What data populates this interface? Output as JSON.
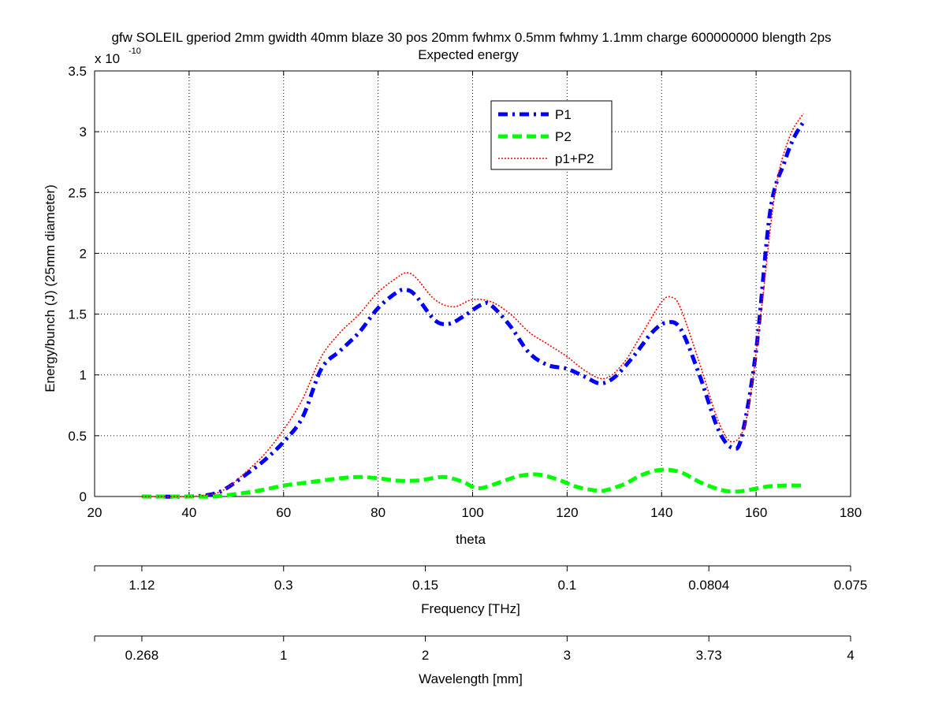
{
  "figure": {
    "title_line1": "gfw SOLEIL gperiod 2mm gwidth 40mm blaze 30 pos 20mm fwhmx 0.5mm fwhmy 1.1mm charge 600000000 blength 2ps",
    "title_line2": "Expected energy",
    "exponent_base": "x 10",
    "exponent_power": "-10"
  },
  "chart_data": {
    "type": "line",
    "title": "gfw SOLEIL gperiod 2mm gwidth 40mm blaze 30 pos 20mm fwhmx 0.5mm fwhmy 1.1mm charge 600000000 blength 2ps\nExpected energy",
    "xlabel": "theta",
    "ylabel": "Energy/bunch (J) (25mm diameter)",
    "y_multiplier": "x 10^-10",
    "xlim": [
      20,
      180
    ],
    "ylim": [
      0,
      3.5
    ],
    "xticks": [
      "20",
      "40",
      "60",
      "80",
      "100",
      "120",
      "140",
      "160",
      "180"
    ],
    "yticks": [
      "0",
      "0.5",
      "1",
      "1.5",
      "2",
      "2.5",
      "3",
      "3.5"
    ],
    "grid": true,
    "legend_position": "top-center",
    "secondary_axes": [
      {
        "label": "Frequency [THz]",
        "ticks": [
          {
            "theta": 30,
            "label": "1.12"
          },
          {
            "theta": 60,
            "label": "0.3"
          },
          {
            "theta": 90,
            "label": "0.15"
          },
          {
            "theta": 120,
            "label": "0.1"
          },
          {
            "theta": 150,
            "label": "0.0804"
          },
          {
            "theta": 180,
            "label": "0.075"
          }
        ]
      },
      {
        "label": "Wavelength [mm]",
        "ticks": [
          {
            "theta": 30,
            "label": "0.268"
          },
          {
            "theta": 60,
            "label": "1"
          },
          {
            "theta": 90,
            "label": "2"
          },
          {
            "theta": 120,
            "label": "3"
          },
          {
            "theta": 150,
            "label": "3.73"
          },
          {
            "theta": 180,
            "label": "4"
          }
        ]
      }
    ],
    "series": [
      {
        "name": "P1",
        "color": "#0000ff",
        "style": "dash-dot",
        "x": [
          30,
          40,
          45,
          48,
          52,
          56,
          60,
          64,
          68,
          72,
          76,
          80,
          84,
          86,
          88,
          92,
          95,
          98,
          102,
          104,
          108,
          112,
          116,
          120,
          124,
          127,
          130,
          134,
          138,
          141,
          144,
          148,
          152,
          155,
          157,
          160,
          163,
          166,
          168,
          170
        ],
        "values": [
          0.0,
          0.0,
          0.02,
          0.07,
          0.18,
          0.3,
          0.45,
          0.65,
          1.05,
          1.2,
          1.35,
          1.55,
          1.68,
          1.7,
          1.65,
          1.45,
          1.42,
          1.48,
          1.58,
          1.57,
          1.4,
          1.18,
          1.08,
          1.05,
          0.98,
          0.93,
          0.98,
          1.15,
          1.35,
          1.43,
          1.38,
          1.0,
          0.55,
          0.4,
          0.5,
          1.2,
          2.35,
          2.75,
          2.95,
          3.08
        ]
      },
      {
        "name": "P2",
        "color": "#00ff00",
        "style": "dashed",
        "x": [
          30,
          40,
          45,
          50,
          55,
          60,
          64,
          68,
          72,
          76,
          80,
          84,
          88,
          90,
          94,
          98,
          100,
          102,
          106,
          110,
          114,
          118,
          122,
          126,
          128,
          132,
          136,
          140,
          144,
          148,
          152,
          155,
          158,
          162,
          166,
          170
        ],
        "values": [
          0.0,
          0.0,
          0.0,
          0.02,
          0.05,
          0.09,
          0.11,
          0.13,
          0.15,
          0.16,
          0.15,
          0.13,
          0.13,
          0.14,
          0.16,
          0.12,
          0.08,
          0.07,
          0.12,
          0.17,
          0.18,
          0.14,
          0.08,
          0.05,
          0.05,
          0.1,
          0.18,
          0.22,
          0.2,
          0.12,
          0.06,
          0.04,
          0.05,
          0.08,
          0.09,
          0.09
        ]
      },
      {
        "name": "p1+P2",
        "color": "#ff0000",
        "style": "dotted",
        "x": [
          30,
          40,
          45,
          48,
          52,
          56,
          60,
          64,
          68,
          72,
          76,
          80,
          84,
          86,
          88,
          92,
          96,
          100,
          104,
          108,
          112,
          116,
          120,
          124,
          128,
          132,
          136,
          140,
          142,
          144,
          148,
          152,
          155,
          158,
          161,
          164,
          167,
          170
        ],
        "values": [
          0.0,
          0.0,
          0.02,
          0.07,
          0.2,
          0.35,
          0.55,
          0.8,
          1.15,
          1.35,
          1.5,
          1.68,
          1.8,
          1.84,
          1.8,
          1.62,
          1.56,
          1.62,
          1.6,
          1.5,
          1.35,
          1.25,
          1.15,
          1.03,
          0.97,
          1.1,
          1.35,
          1.6,
          1.64,
          1.55,
          1.1,
          0.62,
          0.45,
          0.65,
          1.5,
          2.5,
          2.95,
          3.15
        ]
      }
    ]
  }
}
